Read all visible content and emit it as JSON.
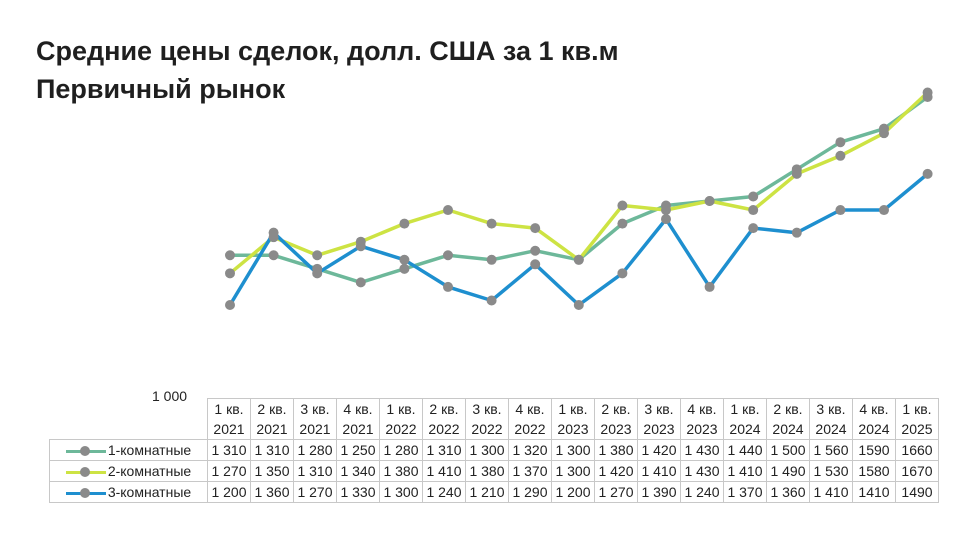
{
  "title_line1": "Средние цены сделок, долл. США за 1 кв.м",
  "title_line2": "Первичный рынок",
  "y_min_label": "1 000",
  "categories": [
    [
      "1 кв.",
      "2021"
    ],
    [
      "2 кв.",
      "2021"
    ],
    [
      "3 кв.",
      "2021"
    ],
    [
      "4 кв.",
      "2021"
    ],
    [
      "1 кв.",
      "2022"
    ],
    [
      "2 кв.",
      "2022"
    ],
    [
      "3 кв.",
      "2022"
    ],
    [
      "4 кв.",
      "2022"
    ],
    [
      "1 кв.",
      "2023"
    ],
    [
      "2 кв.",
      "2023"
    ],
    [
      "3 кв.",
      "2023"
    ],
    [
      "4 кв.",
      "2023"
    ],
    [
      "1 кв.",
      "2024"
    ],
    [
      "2 кв.",
      "2024"
    ],
    [
      "3 кв.",
      "2024"
    ],
    [
      "4 кв.",
      "2024"
    ],
    [
      "1 кв.",
      "2025"
    ]
  ],
  "table_rows": [
    {
      "label": "1-комнатные",
      "cells": [
        "1 310",
        "1 310",
        "1 280",
        "1 250",
        "1 280",
        "1 310",
        "1 300",
        "1 320",
        "1 300",
        "1 380",
        "1 420",
        "1 430",
        "1 440",
        "1 500",
        "1 560",
        "1590",
        "1660"
      ]
    },
    {
      "label": "2-комнатные",
      "cells": [
        "1 270",
        "1 350",
        "1 310",
        "1 340",
        "1 380",
        "1 410",
        "1 380",
        "1 370",
        "1 300",
        "1 420",
        "1 410",
        "1 430",
        "1 410",
        "1 490",
        "1 530",
        "1580",
        "1670"
      ]
    },
    {
      "label": "3-комнатные",
      "cells": [
        "1 200",
        "1 360",
        "1 270",
        "1 330",
        "1 300",
        "1 240",
        "1 210",
        "1 290",
        "1 200",
        "1 270",
        "1 390",
        "1 240",
        "1 370",
        "1 360",
        "1 410",
        "1410",
        "1490"
      ]
    }
  ],
  "chart_data": {
    "type": "line",
    "title": "Средние цены сделок, долл. США за 1 кв.м Первичный рынок",
    "categories": [
      "1 кв. 2021",
      "2 кв. 2021",
      "3 кв. 2021",
      "4 кв. 2021",
      "1 кв. 2022",
      "2 кв. 2022",
      "3 кв. 2022",
      "4 кв. 2022",
      "1 кв. 2023",
      "2 кв. 2023",
      "3 кв. 2023",
      "4 кв. 2023",
      "1 кв. 2024",
      "2 кв. 2024",
      "3 кв. 2024",
      "4 кв. 2024",
      "1 кв. 2025"
    ],
    "ylim": [
      1000,
      1700
    ],
    "grid": false,
    "legend": "in-table",
    "series": [
      {
        "name": "1-комнатные",
        "color": "#6db89a",
        "values": [
          1310,
          1310,
          1280,
          1250,
          1280,
          1310,
          1300,
          1320,
          1300,
          1380,
          1420,
          1430,
          1440,
          1500,
          1560,
          1590,
          1660
        ]
      },
      {
        "name": "2-комнатные",
        "color": "#cde343",
        "values": [
          1270,
          1350,
          1310,
          1340,
          1380,
          1410,
          1380,
          1370,
          1300,
          1420,
          1410,
          1430,
          1410,
          1490,
          1530,
          1580,
          1670
        ]
      },
      {
        "name": "3-комнатные",
        "color": "#1e8fcf",
        "values": [
          1200,
          1360,
          1270,
          1330,
          1300,
          1240,
          1210,
          1290,
          1200,
          1270,
          1390,
          1240,
          1370,
          1360,
          1410,
          1410,
          1490
        ]
      }
    ],
    "marker_color": "#8a8a8a"
  }
}
